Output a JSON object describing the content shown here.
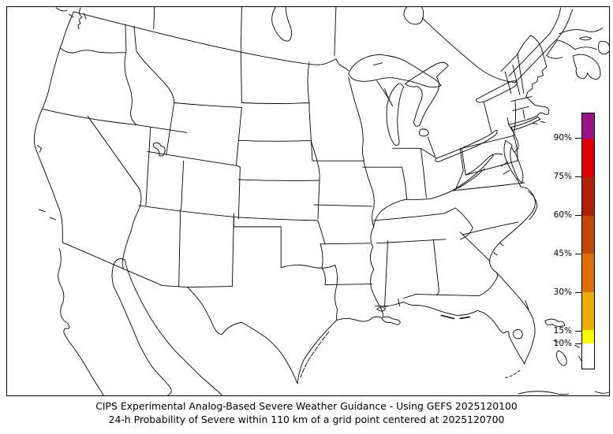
{
  "figure": {
    "background_color": "#ffffff",
    "frame_color": "#000000"
  },
  "caption": {
    "line1": "CIPS Experimental Analog-Based Severe Weather Guidance - Using GEFS 2025120100",
    "line2": "24-h Probability of Severe within 110 km of a grid point centered at 2025120700"
  },
  "map": {
    "region": "Continental United States with southern Canada, northern Mexico, Cuba and Bahamas",
    "style": "state and province outline map, no fill",
    "line_color": "#000000",
    "fill_color": "#ffffff",
    "probability_overlay_areas": []
  },
  "colorbar": {
    "title": "probability",
    "unit": "%",
    "min": 0,
    "max": 100,
    "segments": [
      {
        "from": 0,
        "to": 10,
        "color": "#ffffff"
      },
      {
        "from": 10,
        "to": 15,
        "color": "#fbfb00"
      },
      {
        "from": 15,
        "to": 30,
        "color": "#eaad03"
      },
      {
        "from": 30,
        "to": 45,
        "color": "#dd6f02"
      },
      {
        "from": 45,
        "to": 60,
        "color": "#c34708"
      },
      {
        "from": 60,
        "to": 75,
        "color": "#ae2005"
      },
      {
        "from": 75,
        "to": 90,
        "color": "#dc0005"
      },
      {
        "from": 90,
        "to": 100,
        "color": "#971389"
      }
    ],
    "ticks": [
      {
        "value": 90,
        "label": "90%"
      },
      {
        "value": 75,
        "label": "75%"
      },
      {
        "value": 60,
        "label": "60%"
      },
      {
        "value": 45,
        "label": "45%"
      },
      {
        "value": 30,
        "label": "30%"
      },
      {
        "value": 15,
        "label": "15%"
      },
      {
        "value": 10,
        "label": "10%"
      }
    ]
  }
}
